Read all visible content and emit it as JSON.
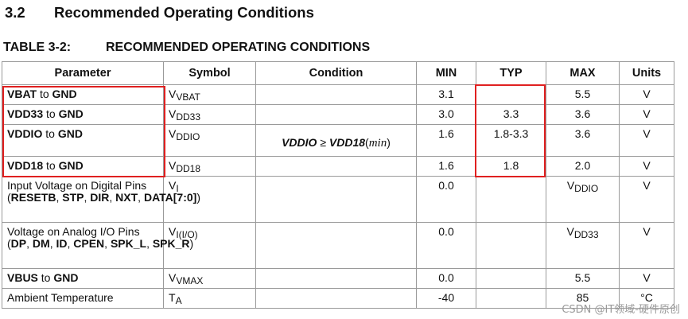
{
  "section": {
    "number": "3.2",
    "title": "Recommended Operating Conditions"
  },
  "table_caption": {
    "number": "TABLE 3-2:",
    "title": "RECOMMENDED OPERATING CONDITIONS"
  },
  "columns": [
    "Parameter",
    "Symbol",
    "Condition",
    "MIN",
    "TYP",
    "MAX",
    "Units"
  ],
  "rows": [
    {
      "param_a": "VBAT",
      "param_b": " to ",
      "param_c": "GND",
      "sym_main": "V",
      "sym_sub": "VBAT",
      "min": "3.1",
      "typ": "",
      "max_main": "5.5",
      "max_sub": "",
      "units": "V"
    },
    {
      "param_a": "VDD33",
      "param_b": " to ",
      "param_c": "GND",
      "sym_main": "V",
      "sym_sub": "DD33",
      "min": "3.0",
      "typ": "3.3",
      "max_main": "3.6",
      "max_sub": "",
      "units": "V"
    },
    {
      "param_a": "VDDIO",
      "param_b": " to ",
      "param_c": "GND",
      "sym_main": "V",
      "sym_sub": "DDIO",
      "min": "1.6",
      "typ": "1.8-3.3",
      "max_main": "3.6",
      "max_sub": "",
      "units": "V"
    },
    {
      "param_a": "VDD18",
      "param_b": " to ",
      "param_c": "GND",
      "sym_main": "V",
      "sym_sub": "DD18",
      "min": "1.6",
      "typ": "1.8",
      "max_main": "2.0",
      "max_sub": "",
      "units": "V"
    },
    {
      "param_text1": "Input Voltage on Digital Pins (",
      "param_b1": "RESETB",
      "param_s1": ", ",
      "param_b2": "STP",
      "param_s2": ", ",
      "param_b3": "DIR",
      "param_s3": ", ",
      "param_b4": "NXT",
      "param_s4": ", ",
      "param_b5": "DATA[7:0]",
      "param_s5": ")",
      "sym_main": "V",
      "sym_sub": "I",
      "min": "0.0",
      "typ": "",
      "max_main": "V",
      "max_sub": "DDIO",
      "units": "V"
    },
    {
      "param_text1": "Voltage on Analog I/O Pins (",
      "param_b1": "DP",
      "param_s1": ", ",
      "param_b2": "DM",
      "param_s2": ", ",
      "param_b3": "ID",
      "param_s3": ", ",
      "param_b4": "CPEN",
      "param_s4": ", ",
      "param_b5": "SPK_L",
      "param_s5": ", ",
      "param_b6": "SPK_R",
      "param_s6": ")",
      "sym_main": "V",
      "sym_sub": "I(I/O)",
      "min": "0.0",
      "typ": "",
      "max_main": "V",
      "max_sub": "DD33",
      "units": "V"
    },
    {
      "param_a": "VBUS",
      "param_b": " to ",
      "param_c": "GND",
      "sym_main": "V",
      "sym_sub": "VMAX",
      "min": "0.0",
      "typ": "",
      "max_main": "5.5",
      "max_sub": "",
      "units": "V"
    },
    {
      "param_plain": "Ambient Temperature",
      "sym_main": "T",
      "sym_sub": "A",
      "min": "-40",
      "typ": "",
      "max_main": "85",
      "max_sub": "",
      "units": "°C"
    }
  ],
  "condition_vddio": {
    "lhs": "VDDIO",
    "op": " ≥ ",
    "rhs": "VDD18",
    "paren_open": "(",
    "word": "min",
    "paren_close": ")"
  },
  "watermark": "CSDN @IT领域-硬件原创",
  "highlight_color": "#e02020"
}
